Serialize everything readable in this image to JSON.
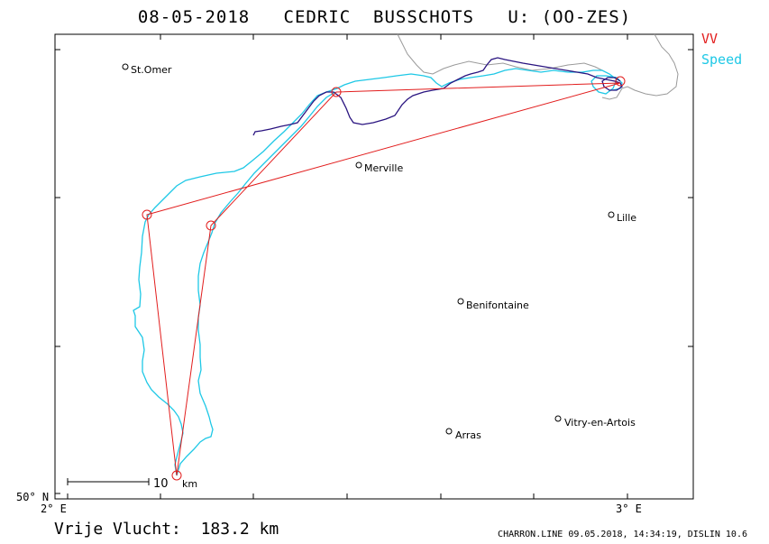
{
  "title": "08-05-2018   CEDRIC  BUSSCHOTS   U: (OO-ZES)",
  "legend": {
    "vv": "VV",
    "speed": "Speed"
  },
  "axes": {
    "x_left_label": "2° E",
    "x_right_label": "3° E",
    "y_bottom_label": "50° N"
  },
  "scale_bar": {
    "number": "10",
    "unit": "km"
  },
  "places": [
    {
      "name": "St.Omer"
    },
    {
      "name": "Merville"
    },
    {
      "name": "Lille"
    },
    {
      "name": "Benifontaine"
    },
    {
      "name": "Arras"
    },
    {
      "name": "Vitry-en-Artois"
    }
  ],
  "footer": {
    "label": "Vrije Vlucht:",
    "distance": "183.2 km",
    "credit": "CHARRON.LINE 09.05.2018, 14:34:19, DISLIN 10.6"
  },
  "colors": {
    "vv_task": "#e21d1d",
    "speed_track": "#1ec8e6",
    "climb_track": "#2a1480",
    "coast": "#9a9a9a"
  }
}
